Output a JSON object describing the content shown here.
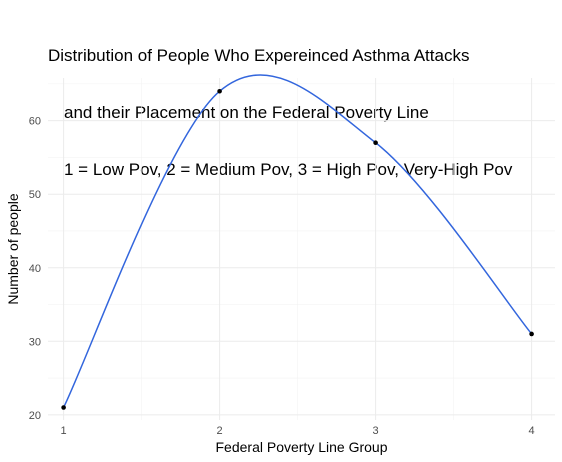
{
  "chart_data": {
    "type": "line",
    "title_lines": [
      "Distribution of People Who Expereinced Asthma Attacks",
      "and their Placement on the Federal Poverty Line",
      "1 = Low Pov, 2 = Medium Pov, 3 = High Pov, Very-High Pov"
    ],
    "xlabel": "Federal Poverty Line Group",
    "ylabel": "Number of people",
    "x": [
      1,
      2,
      3,
      4
    ],
    "values": [
      21,
      64,
      57,
      31
    ],
    "x_ticks": [
      "1",
      "2",
      "3",
      "4"
    ],
    "y_ticks": [
      "20",
      "30",
      "40",
      "50",
      "60"
    ],
    "xlim": [
      0.9,
      4.15
    ],
    "ylim": [
      19.3,
      65.8
    ],
    "grid": true,
    "smoothed": true,
    "line_color": "#3366dd",
    "point_color": "#000000"
  }
}
